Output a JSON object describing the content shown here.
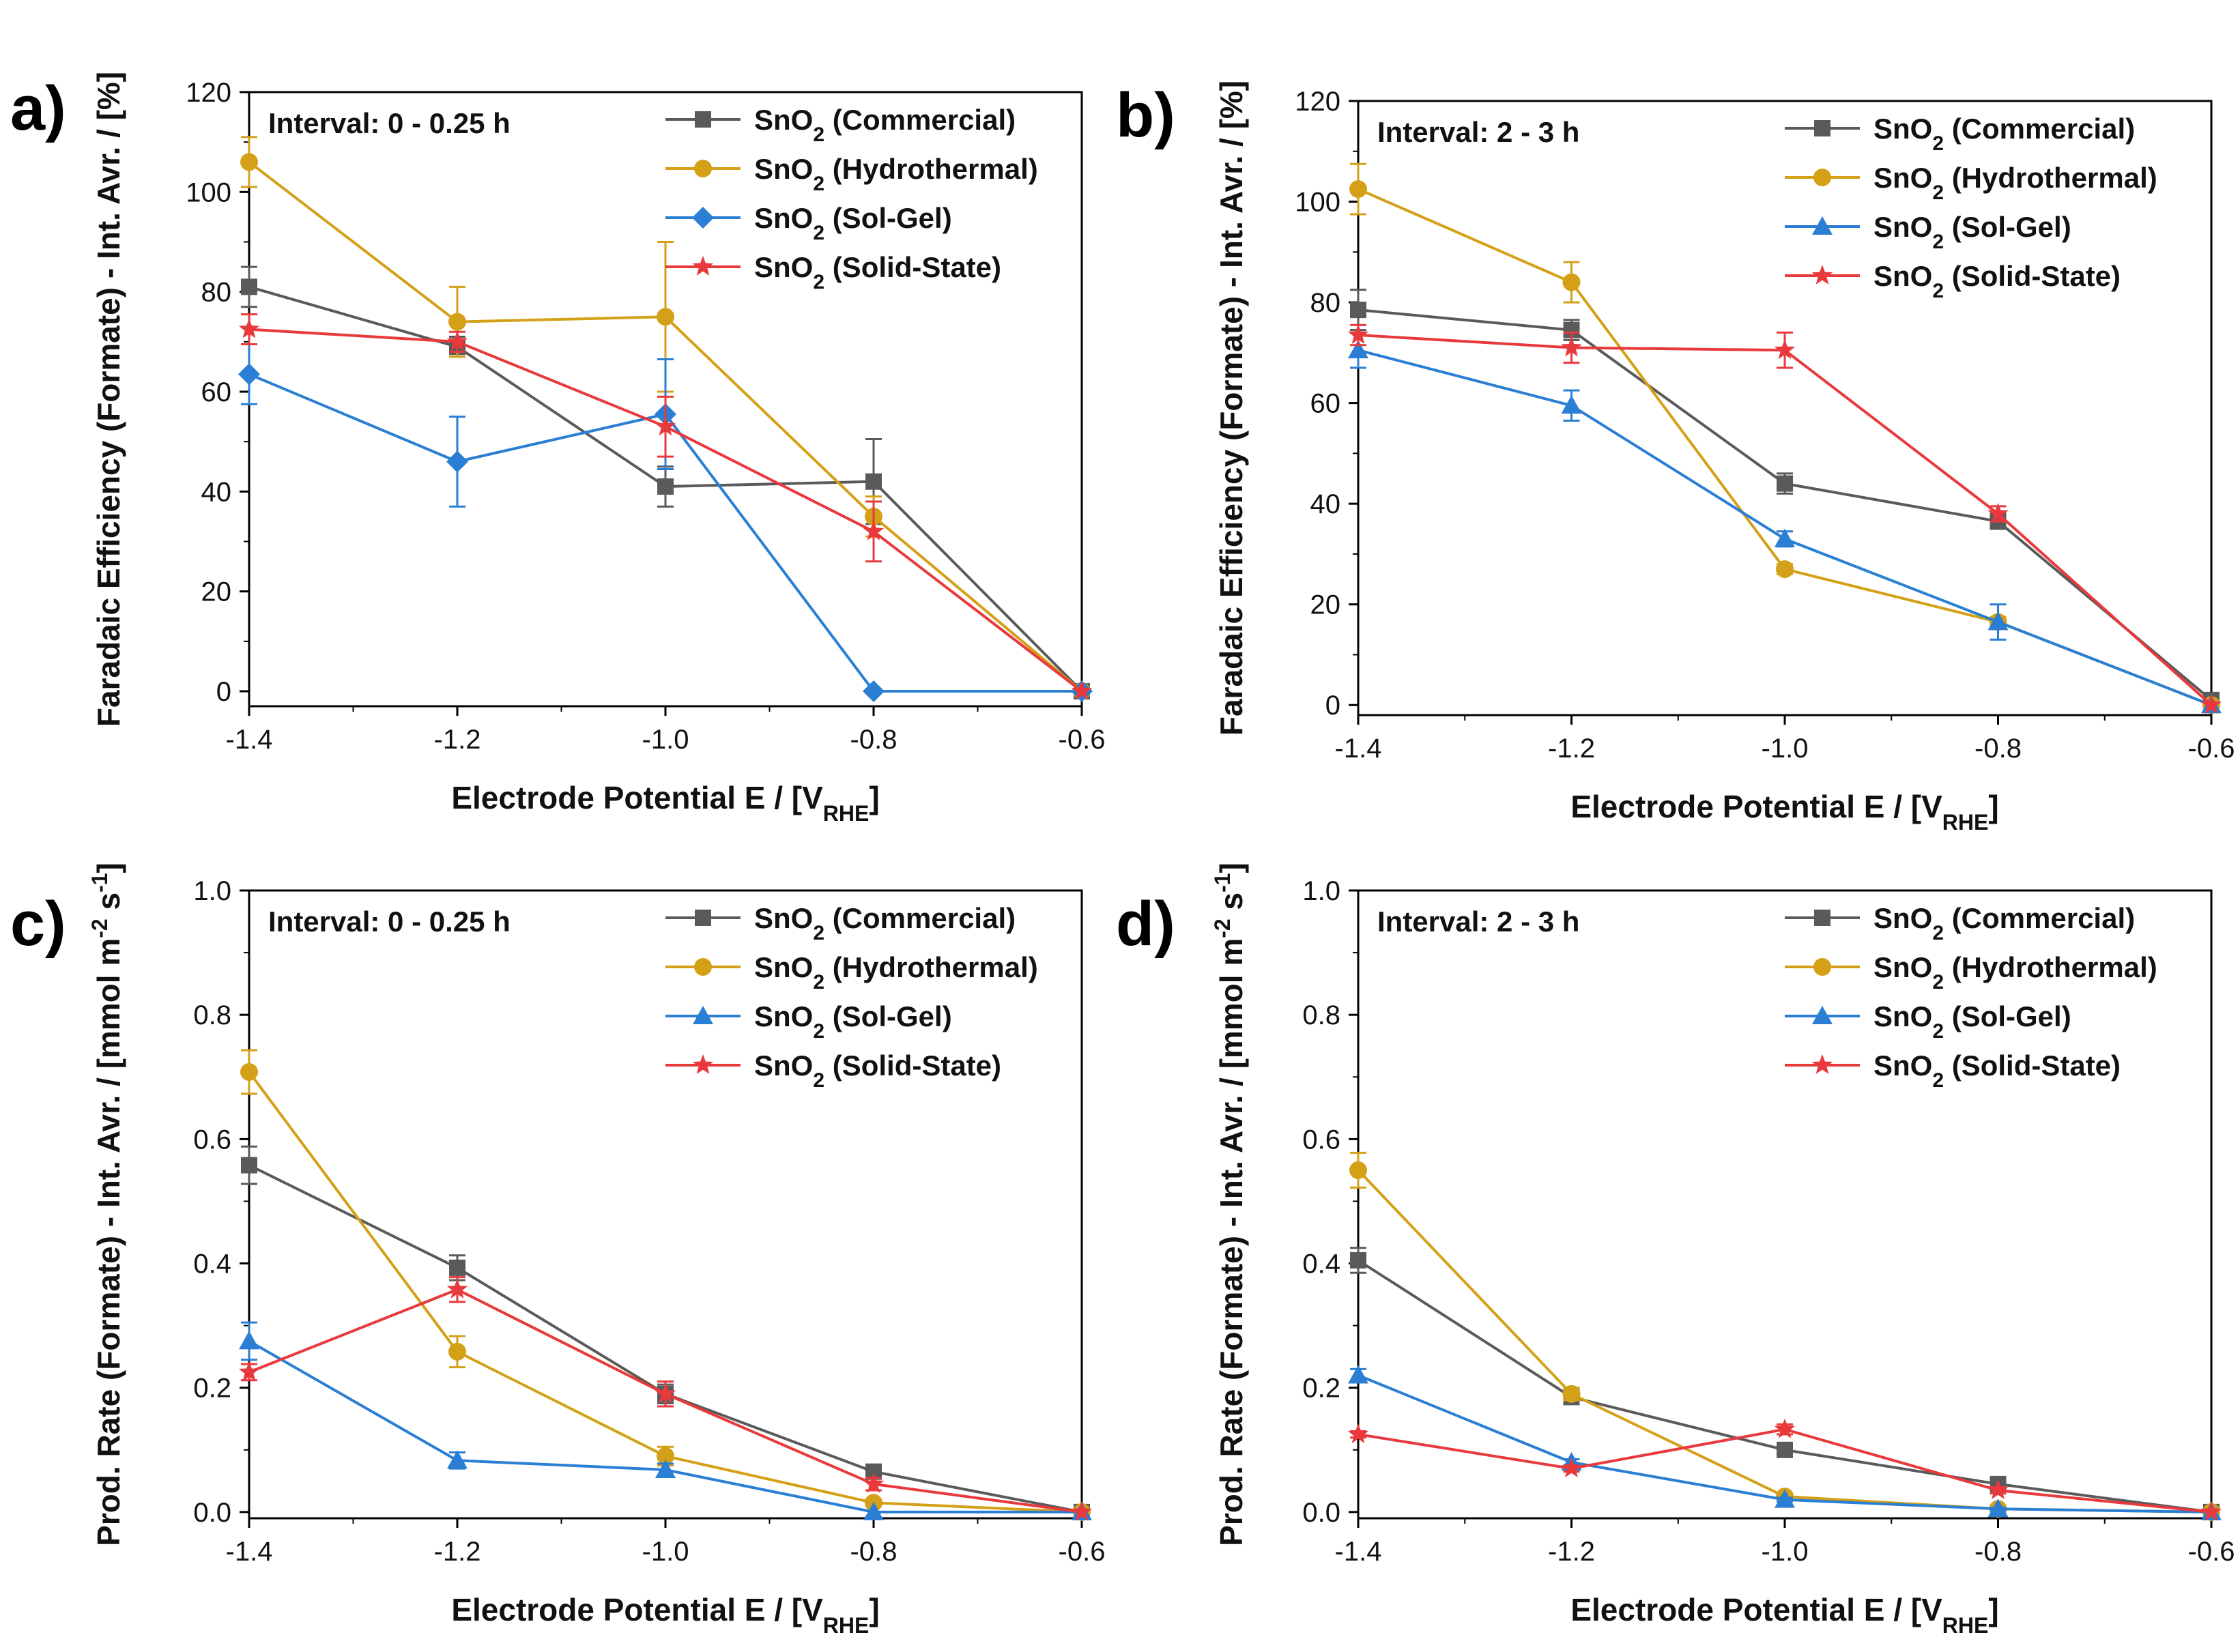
{
  "chart_data": [
    {
      "panel": "a)",
      "type": "line",
      "annotation": "Interval: 0 - 0.25 h",
      "xlabel": "Electrode Potential E / [V",
      "xlabel_sub": "RHE",
      "xlabel_end": "]",
      "ylabel": "Faradaic Efficiency (Formate) - Int. Avr. / [%]",
      "xlim": [
        -1.4,
        -0.6
      ],
      "ylim": [
        -3,
        120
      ],
      "xticks": [
        -1.4,
        -1.2,
        -1.0,
        -0.8,
        -0.6
      ],
      "xtick_labels": [
        "-1.4",
        "-1.2",
        "-1.0",
        "-0.8",
        "-0.6"
      ],
      "yticks": [
        0,
        20,
        40,
        60,
        80,
        100,
        120
      ],
      "ytick_labels": [
        "0",
        "20",
        "40",
        "60",
        "80",
        "100",
        "120"
      ],
      "x": [
        -1.4,
        -1.2,
        -1.0,
        -0.8,
        -0.6
      ],
      "legend_position": "top-right",
      "series": [
        {
          "name": "Commercial",
          "label_pre": "SnO",
          "label_sub": "2",
          "label_post": " (Commercial)",
          "color": "#5a5a5a",
          "marker": "square",
          "values": [
            81,
            69,
            41,
            42,
            0
          ],
          "errors": [
            4,
            2,
            4,
            8.5,
            0
          ]
        },
        {
          "name": "Hydrothermal",
          "label_pre": "SnO",
          "label_sub": "2",
          "label_post": " (Hydrothermal)",
          "color": "#d4a017",
          "marker": "circle",
          "values": [
            106,
            74,
            75,
            35,
            0
          ],
          "errors": [
            5,
            7,
            15,
            4,
            0
          ]
        },
        {
          "name": "Sol-Gel",
          "label_pre": "SnO",
          "label_sub": "2",
          "label_post": " (Sol-Gel)",
          "color": "#2a7fd4",
          "marker": "diamond",
          "values": [
            63.5,
            46,
            55.5,
            0,
            0
          ],
          "errors": [
            6,
            9,
            11,
            0,
            0
          ]
        },
        {
          "name": "Solid-State",
          "label_pre": "SnO",
          "label_sub": "2",
          "label_post": " (Solid-State)",
          "color": "#e8393c",
          "marker": "star",
          "values": [
            72.5,
            70,
            53,
            32,
            0
          ],
          "errors": [
            3,
            2,
            6,
            6,
            0
          ]
        }
      ]
    },
    {
      "panel": "b)",
      "type": "line",
      "annotation": "Interval: 2 - 3 h",
      "xlabel": "Electrode Potential E / [V",
      "xlabel_sub": "RHE",
      "xlabel_end": "]",
      "ylabel": "Faradaic Efficiency (Formate) - Int. Avr. / [%]",
      "xlim": [
        -1.4,
        -0.6
      ],
      "ylim": [
        -2,
        120
      ],
      "xticks": [
        -1.4,
        -1.2,
        -1.0,
        -0.8,
        -0.6
      ],
      "xtick_labels": [
        "-1.4",
        "-1.2",
        "-1.0",
        "-0.8",
        "-0.6"
      ],
      "yticks": [
        0,
        20,
        40,
        60,
        80,
        100,
        120
      ],
      "ytick_labels": [
        "0",
        "20",
        "40",
        "60",
        "80",
        "100",
        "120"
      ],
      "x": [
        -1.4,
        -1.2,
        -1.0,
        -0.8,
        -0.6
      ],
      "legend_position": "top-right",
      "series": [
        {
          "name": "Commercial",
          "label_pre": "SnO",
          "label_sub": "2",
          "label_post": " (Commercial)",
          "color": "#5a5a5a",
          "marker": "square",
          "values": [
            78.5,
            74.5,
            44,
            36.5,
            1
          ],
          "errors": [
            4,
            2,
            2,
            1.5,
            0
          ]
        },
        {
          "name": "Hydrothermal",
          "label_pre": "SnO",
          "label_sub": "2",
          "label_post": " (Hydrothermal)",
          "color": "#d4a017",
          "marker": "circle",
          "values": [
            102.5,
            84,
            27,
            16.5,
            0
          ],
          "errors": [
            5,
            4,
            1,
            1,
            0
          ]
        },
        {
          "name": "Sol-Gel",
          "label_pre": "SnO",
          "label_sub": "2",
          "label_post": " (Sol-Gel)",
          "color": "#2a7fd4",
          "marker": "triangle",
          "values": [
            70.5,
            59.5,
            33,
            16.5,
            0
          ],
          "errors": [
            3.5,
            3,
            1.5,
            3.5,
            0
          ]
        },
        {
          "name": "Solid-State",
          "label_pre": "SnO",
          "label_sub": "2",
          "label_post": " (Solid-State)",
          "color": "#e8393c",
          "marker": "star",
          "values": [
            73.5,
            71,
            70.5,
            38,
            0
          ],
          "errors": [
            2,
            3,
            3.5,
            1.5,
            0
          ]
        }
      ]
    },
    {
      "panel": "c)",
      "type": "line",
      "annotation": "Interval: 0 - 0.25 h",
      "xlabel": "Electrode Potential E / [V",
      "xlabel_sub": "RHE",
      "xlabel_end": "]",
      "ylabel": "Prod. Rate (Formate) - Int. Avr. / [mmol m",
      "ylabel_sup1": "-2",
      "ylabel_mid": " s",
      "ylabel_sup2": "-1",
      "ylabel_end": "]",
      "xlim": [
        -1.4,
        -0.6
      ],
      "ylim": [
        -0.01,
        1.0
      ],
      "xticks": [
        -1.4,
        -1.2,
        -1.0,
        -0.8,
        -0.6
      ],
      "xtick_labels": [
        "-1.4",
        "-1.2",
        "-1.0",
        "-0.8",
        "-0.6"
      ],
      "yticks": [
        0,
        0.2,
        0.4,
        0.6,
        0.8,
        1.0
      ],
      "ytick_labels": [
        "0.0",
        "0.2",
        "0.4",
        "0.6",
        "0.8",
        "1.0"
      ],
      "x": [
        -1.4,
        -1.2,
        -1.0,
        -0.8,
        -0.6
      ],
      "legend_position": "top-right",
      "series": [
        {
          "name": "Commercial",
          "label_pre": "SnO",
          "label_sub": "2",
          "label_post": " (Commercial)",
          "color": "#5a5a5a",
          "marker": "square",
          "values": [
            0.558,
            0.393,
            0.19,
            0.065,
            0.0
          ],
          "errors": [
            0.03,
            0.02,
            0.015,
            0.005,
            0
          ]
        },
        {
          "name": "Hydrothermal",
          "label_pre": "SnO",
          "label_sub": "2",
          "label_post": " (Hydrothermal)",
          "color": "#d4a017",
          "marker": "circle",
          "values": [
            0.708,
            0.258,
            0.09,
            0.015,
            0.0
          ],
          "errors": [
            0.035,
            0.025,
            0.015,
            0.005,
            0
          ]
        },
        {
          "name": "Sol-Gel",
          "label_pre": "SnO",
          "label_sub": "2",
          "label_post": " (Sol-Gel)",
          "color": "#2a7fd4",
          "marker": "triangle",
          "values": [
            0.275,
            0.083,
            0.068,
            0.0,
            0.0
          ],
          "errors": [
            0.03,
            0.013,
            0.01,
            0,
            0
          ]
        },
        {
          "name": "Solid-State",
          "label_pre": "SnO",
          "label_sub": "2",
          "label_post": " (Solid-State)",
          "color": "#e8393c",
          "marker": "star",
          "values": [
            0.225,
            0.358,
            0.19,
            0.045,
            0.0
          ],
          "errors": [
            0.013,
            0.02,
            0.02,
            0.01,
            0
          ]
        }
      ]
    },
    {
      "panel": "d)",
      "type": "line",
      "annotation": "Interval: 2 - 3 h",
      "xlabel": "Electrode Potential E / [V",
      "xlabel_sub": "RHE",
      "xlabel_end": "]",
      "ylabel": "Prod. Rate (Formate) - Int. Avr. / [mmol m",
      "ylabel_sup1": "-2",
      "ylabel_mid": " s",
      "ylabel_sup2": "-1",
      "ylabel_end": "]",
      "xlim": [
        -1.4,
        -0.6
      ],
      "ylim": [
        -0.01,
        1.0
      ],
      "xticks": [
        -1.4,
        -1.2,
        -1.0,
        -0.8,
        -0.6
      ],
      "xtick_labels": [
        "-1.4",
        "-1.2",
        "-1.0",
        "-0.8",
        "-0.6"
      ],
      "yticks": [
        0,
        0.2,
        0.4,
        0.6,
        0.8,
        1.0
      ],
      "ytick_labels": [
        "0.0",
        "0.2",
        "0.4",
        "0.6",
        "0.8",
        "1.0"
      ],
      "x": [
        -1.4,
        -1.2,
        -1.0,
        -0.8,
        -0.6
      ],
      "legend_position": "top-right",
      "series": [
        {
          "name": "Commercial",
          "label_pre": "SnO",
          "label_sub": "2",
          "label_post": " (Commercial)",
          "color": "#5a5a5a",
          "marker": "square",
          "values": [
            0.405,
            0.185,
            0.1,
            0.045,
            0.0
          ],
          "errors": [
            0.02,
            0.005,
            0.005,
            0.005,
            0
          ]
        },
        {
          "name": "Hydrothermal",
          "label_pre": "SnO",
          "label_sub": "2",
          "label_post": " (Hydrothermal)",
          "color": "#d4a017",
          "marker": "circle",
          "values": [
            0.55,
            0.19,
            0.025,
            0.005,
            0.0
          ],
          "errors": [
            0.028,
            0.01,
            0.005,
            0.003,
            0
          ]
        },
        {
          "name": "Sol-Gel",
          "label_pre": "SnO",
          "label_sub": "2",
          "label_post": " (Sol-Gel)",
          "color": "#2a7fd4",
          "marker": "triangle",
          "values": [
            0.22,
            0.08,
            0.02,
            0.005,
            0.0
          ],
          "errors": [
            0.01,
            0.005,
            0.003,
            0.002,
            0
          ]
        },
        {
          "name": "Solid-State",
          "label_pre": "SnO",
          "label_sub": "2",
          "label_post": " (Solid-State)",
          "color": "#e8393c",
          "marker": "star",
          "values": [
            0.125,
            0.07,
            0.133,
            0.035,
            0.0
          ],
          "errors": [
            0.005,
            0.005,
            0.008,
            0.005,
            0
          ]
        }
      ]
    }
  ]
}
